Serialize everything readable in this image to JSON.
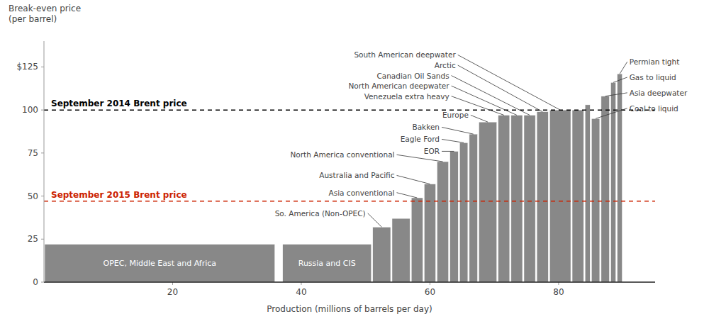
{
  "chart_data": {
    "type": "bar",
    "ylabel": "Break-even price\n(per barrel)",
    "xlabel": "Production (millions of barrels per day)",
    "xlim": [
      0,
      95
    ],
    "ylim": [
      0,
      140
    ],
    "xticks": [
      20,
      40,
      60,
      80
    ],
    "yticks": [
      0,
      25,
      50,
      75,
      100,
      {
        "value": 125,
        "label": "$125"
      }
    ],
    "grid": false,
    "color": "#888888",
    "x_start": [
      0,
      37,
      51,
      54,
      57,
      59,
      61,
      63,
      64.5,
      66,
      67.5,
      70.5,
      72.5,
      74.5,
      76.5,
      78.5,
      82,
      84,
      85,
      86.5,
      88,
      89
    ],
    "x_end": [
      36,
      51,
      54,
      57,
      59,
      61,
      63,
      64.5,
      66,
      67.5,
      70.5,
      72.5,
      74.5,
      76.5,
      78.5,
      82,
      84,
      85,
      86.5,
      88,
      89,
      90
    ],
    "values": [
      22,
      22,
      32,
      37,
      49,
      57,
      70,
      76,
      81,
      86,
      93,
      97,
      97,
      97,
      99,
      100,
      100,
      103,
      95,
      108,
      116,
      121
    ],
    "bar_labels": [
      "OPEC, Middle East and Africa",
      "Russia and CIS",
      null,
      null,
      null,
      null,
      null,
      null,
      null,
      null,
      null,
      null,
      null,
      null,
      null,
      null,
      null,
      null,
      null,
      null,
      null,
      null
    ],
    "reference_lines": [
      {
        "value": 100,
        "label": "September 2014 Brent price",
        "color": "#000000"
      },
      {
        "value": 47,
        "label": "September 2015 Brent price",
        "color": "#cc2200"
      }
    ],
    "annotations": [
      {
        "text": "So. America (Non-OPEC)",
        "x": 52.5,
        "y": 32,
        "text_x": 50,
        "text_y": 40
      },
      {
        "text": "Asia conventional",
        "x": 58,
        "y": 49,
        "text_x": 54.5,
        "text_y": 52
      },
      {
        "text": "Australia and Pacific",
        "x": 60,
        "y": 57,
        "text_x": 54.5,
        "text_y": 62
      },
      {
        "text": "North America conventional",
        "x": 62,
        "y": 70,
        "text_x": 54.5,
        "text_y": 74
      },
      {
        "text": "EOR",
        "x": 63.75,
        "y": 76,
        "text_x": 61.5,
        "text_y": 76
      },
      {
        "text": "Eagle Ford",
        "x": 65.25,
        "y": 81,
        "text_x": 61.5,
        "text_y": 83
      },
      {
        "text": "Bakken",
        "x": 66.75,
        "y": 86,
        "text_x": 61.5,
        "text_y": 90
      },
      {
        "text": "Europe",
        "x": 69,
        "y": 93,
        "text_x": 66,
        "text_y": 97
      },
      {
        "text": "Venezuela extra heavy",
        "x": 71.5,
        "y": 97,
        "text_x": 63,
        "text_y": 108
      },
      {
        "text": "North American deepwater",
        "x": 73.5,
        "y": 97,
        "text_x": 63,
        "text_y": 114
      },
      {
        "text": "Canadian Oil Sands",
        "x": 75.5,
        "y": 97,
        "text_x": 63,
        "text_y": 120
      },
      {
        "text": "Arctic",
        "x": 77.5,
        "y": 99,
        "text_x": 64,
        "text_y": 126
      },
      {
        "text": "South American deepwater",
        "x": 80.25,
        "y": 100,
        "text_x": 64,
        "text_y": 132
      },
      {
        "text": "Coal to liquid",
        "x": 85.75,
        "y": 95,
        "text_x": 91,
        "text_y": 101
      },
      {
        "text": "Asia deepwater",
        "x": 87.25,
        "y": 108,
        "text_x": 91,
        "text_y": 110
      },
      {
        "text": "Gas to liquid",
        "x": 88.5,
        "y": 116,
        "text_x": 91,
        "text_y": 119
      },
      {
        "text": "Permian tight",
        "x": 89.5,
        "y": 121,
        "text_x": 91,
        "text_y": 128
      }
    ]
  }
}
